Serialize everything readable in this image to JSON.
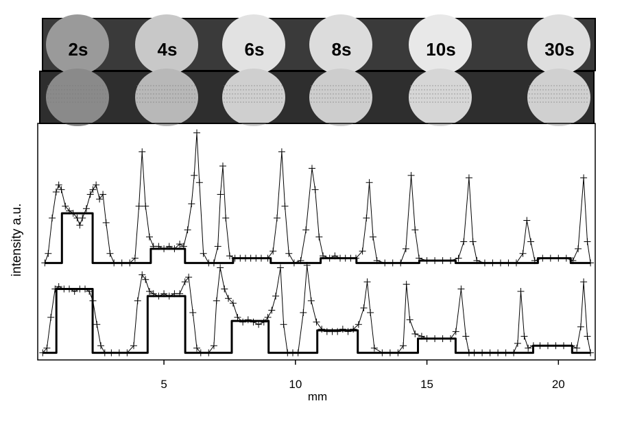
{
  "photos": {
    "labels": [
      "2s",
      "4s",
      "6s",
      "8s",
      "10s",
      "30s"
    ]
  },
  "chart_data": {
    "type": "line",
    "x_label": "mm",
    "y_label": "intensity a.u.",
    "xlim": [
      0.2,
      21.4
    ],
    "xticks": [
      5,
      10,
      15,
      20
    ],
    "ylim": [
      0,
      100
    ],
    "series": [
      {
        "color": "#000000",
        "marker": "plus",
        "width": 1,
        "x": [
          0.47,
          0.6,
          0.75,
          0.9,
          1.0,
          1.1,
          1.25,
          1.4,
          1.55,
          1.7,
          1.8,
          1.9,
          2.05,
          2.2,
          2.3,
          2.42,
          2.55,
          2.68,
          2.8,
          2.95,
          3.1,
          3.4,
          3.7,
          3.9,
          4.05,
          4.17,
          4.3,
          4.45,
          4.6,
          4.8,
          5.0,
          5.2,
          5.4,
          5.6,
          5.75,
          5.9,
          6.05,
          6.15,
          6.25,
          6.35,
          6.5,
          6.7,
          6.9,
          7.05,
          7.15,
          7.24,
          7.35,
          7.5,
          7.7,
          7.9,
          8.1,
          8.3,
          8.5,
          8.7,
          8.95,
          9.15,
          9.3,
          9.48,
          9.6,
          9.75,
          9.95,
          10.2,
          10.4,
          10.63,
          10.75,
          10.9,
          11.05,
          11.3,
          11.5,
          11.7,
          11.9,
          12.1,
          12.3,
          12.55,
          12.7,
          12.81,
          12.95,
          13.1,
          13.4,
          13.7,
          14.0,
          14.2,
          14.4,
          14.55,
          14.7,
          15.0,
          15.3,
          15.6,
          15.9,
          16.2,
          16.4,
          16.6,
          16.75,
          16.9,
          17.2,
          17.5,
          17.8,
          18.1,
          18.4,
          18.65,
          18.8,
          18.95,
          19.1,
          19.4,
          19.7,
          20.0,
          20.3,
          20.55,
          20.75,
          20.96,
          21.1,
          21.22
        ],
        "values": [
          41,
          45,
          60,
          71,
          74,
          72,
          65,
          63,
          62,
          60,
          57,
          60,
          64,
          70,
          72,
          74,
          68,
          70,
          58,
          45,
          41,
          41,
          41,
          43,
          65,
          88,
          65,
          52,
          48,
          48,
          47,
          48,
          47,
          49,
          48,
          55,
          66,
          78,
          96,
          75,
          45,
          41,
          41,
          48,
          70,
          82,
          60,
          44,
          43,
          43,
          43,
          43,
          43,
          43,
          43,
          46,
          60,
          88,
          65,
          45,
          41,
          42,
          55,
          81,
          72,
          52,
          44,
          43,
          44,
          43,
          43,
          43,
          43,
          46,
          60,
          75,
          52,
          42,
          41,
          41,
          41,
          47,
          78,
          55,
          43,
          42,
          42,
          42,
          42,
          43,
          50,
          77,
          50,
          42,
          41,
          41,
          41,
          41,
          41,
          45,
          59,
          50,
          42,
          43,
          43,
          43,
          43,
          42,
          47,
          77,
          50,
          41
        ]
      },
      {
        "color": "#000000",
        "width": 3,
        "x": [
          0.47,
          1.12,
          1.12,
          2.29,
          2.29,
          4.5,
          4.5,
          5.8,
          5.8,
          7.63,
          7.63,
          9.06,
          9.06,
          10.96,
          10.96,
          12.32,
          12.32,
          14.71,
          14.71,
          16.09,
          16.09,
          19.22,
          19.22,
          20.47,
          20.47,
          21.22
        ],
        "values": [
          41,
          41,
          62,
          62,
          41,
          41,
          47,
          47,
          41,
          41,
          43,
          43,
          41,
          41,
          43,
          43,
          41,
          41,
          42,
          42,
          41,
          41,
          43,
          43,
          41,
          41
        ]
      },
      {
        "color": "#000000",
        "marker": "plus",
        "width": 1,
        "x": [
          0.39,
          0.55,
          0.7,
          0.86,
          1.0,
          1.2,
          1.4,
          1.6,
          1.8,
          2.0,
          2.16,
          2.3,
          2.45,
          2.6,
          2.75,
          3.0,
          3.3,
          3.6,
          3.85,
          4.0,
          4.17,
          4.3,
          4.45,
          4.6,
          4.8,
          5.0,
          5.2,
          5.4,
          5.6,
          5.8,
          5.94,
          6.1,
          6.25,
          6.4,
          6.7,
          6.9,
          7.0,
          7.14,
          7.3,
          7.45,
          7.63,
          7.8,
          8.0,
          8.2,
          8.4,
          8.6,
          8.8,
          8.95,
          9.1,
          9.25,
          9.43,
          9.55,
          9.7,
          9.9,
          10.1,
          10.3,
          10.44,
          10.6,
          10.8,
          11.0,
          11.2,
          11.4,
          11.6,
          11.8,
          12.0,
          12.2,
          12.4,
          12.6,
          12.73,
          12.85,
          13.0,
          13.3,
          13.6,
          13.9,
          14.1,
          14.22,
          14.35,
          14.55,
          14.8,
          15.0,
          15.3,
          15.6,
          15.9,
          16.1,
          16.3,
          16.48,
          16.6,
          16.8,
          17.1,
          17.4,
          17.7,
          18.0,
          18.3,
          18.45,
          18.57,
          18.7,
          18.85,
          19.05,
          19.3,
          19.6,
          19.9,
          20.2,
          20.5,
          20.7,
          20.85,
          20.96,
          21.1,
          21.22
        ],
        "values": [
          3,
          5,
          18,
          30,
          31,
          30,
          30,
          29,
          30,
          30,
          29,
          25,
          15,
          6,
          3,
          3,
          3,
          3,
          6,
          25,
          36,
          34,
          29,
          28,
          27,
          28,
          27,
          28,
          28,
          33,
          35,
          20,
          5,
          3,
          3,
          6,
          25,
          39,
          30,
          26,
          24,
          18,
          16,
          17,
          16,
          15,
          16,
          18,
          21,
          27,
          39,
          15,
          3,
          3,
          3,
          20,
          40,
          25,
          16,
          13,
          12,
          12,
          12,
          13,
          12,
          13,
          15,
          22,
          33,
          20,
          5,
          3,
          3,
          3,
          6,
          32,
          17,
          11,
          10,
          9,
          9,
          9,
          9,
          12,
          30,
          10,
          3,
          3,
          3,
          3,
          3,
          3,
          3,
          7,
          29,
          10,
          5,
          6,
          6,
          6,
          6,
          6,
          6,
          5,
          14,
          33,
          10,
          3
        ]
      },
      {
        "color": "#000000",
        "width": 3,
        "x": [
          0.39,
          0.91,
          0.91,
          2.29,
          2.29,
          4.38,
          4.38,
          5.81,
          5.81,
          7.58,
          7.58,
          8.98,
          8.98,
          10.83,
          10.83,
          12.37,
          12.37,
          14.66,
          14.66,
          16.09,
          16.09,
          19.04,
          19.04,
          20.52,
          20.52,
          21.22
        ],
        "values": [
          3,
          3,
          30,
          30,
          3,
          3,
          27,
          27,
          3,
          3,
          16.5,
          16.5,
          3,
          3,
          12.5,
          12.5,
          3,
          3,
          9,
          9,
          3,
          3,
          6,
          6,
          3,
          3
        ]
      }
    ]
  }
}
